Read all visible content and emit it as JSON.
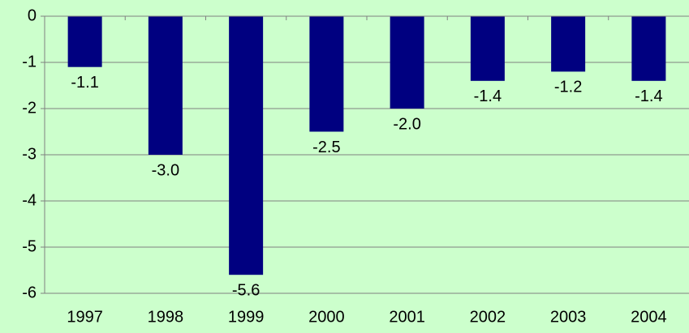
{
  "chart_data": {
    "type": "bar",
    "categories": [
      "1997",
      "1998",
      "1999",
      "2000",
      "2001",
      "2002",
      "2003",
      "2004"
    ],
    "values": [
      -1.1,
      -3.0,
      -5.6,
      -2.5,
      -2.0,
      -1.4,
      -1.2,
      -1.4
    ],
    "value_labels": [
      "-1.1",
      "-3.0",
      "-5.6",
      "-2.5",
      "-2.0",
      "-1.4",
      "-1.2",
      "-1.4"
    ],
    "color": "#000080",
    "ylim": [
      -6,
      0
    ],
    "yticks": [
      0,
      -1,
      -2,
      -3,
      -4,
      -5,
      -6
    ],
    "grid": true
  }
}
